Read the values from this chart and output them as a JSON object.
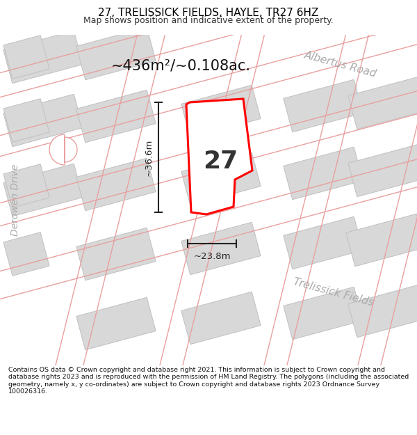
{
  "title": "27, TRELISSICK FIELDS, HAYLE, TR27 6HZ",
  "subtitle": "Map shows position and indicative extent of the property.",
  "footer": "Contains OS data © Crown copyright and database right 2021. This information is subject to Crown copyright and database rights 2023 and is reproduced with the permission of HM Land Registry. The polygons (including the associated geometry, namely x, y co-ordinates) are subject to Crown copyright and database rights 2023 Ordnance Survey 100026316.",
  "area_label": "~436m²/~0.108ac.",
  "plot_number": "27",
  "dim_width": "~23.8m",
  "dim_height": "~36.6m",
  "road_label_top": "Albertus Road",
  "road_label_left": "Derowen Drive",
  "road_label_bottom": "Trelissick Fields",
  "map_bg": "#ffffff",
  "bld_fill": "#d8d8d8",
  "bld_edge": "#c0c0c0",
  "road_line_color": "#e8a0a0",
  "plot_fill": "#ffffff",
  "plot_stroke": "#ff0000",
  "dim_color": "#222222",
  "title_color": "#000000",
  "road_label_color": "#aaaaaa",
  "title_fontsize": 11,
  "subtitle_fontsize": 9,
  "footer_fontsize": 6.8
}
